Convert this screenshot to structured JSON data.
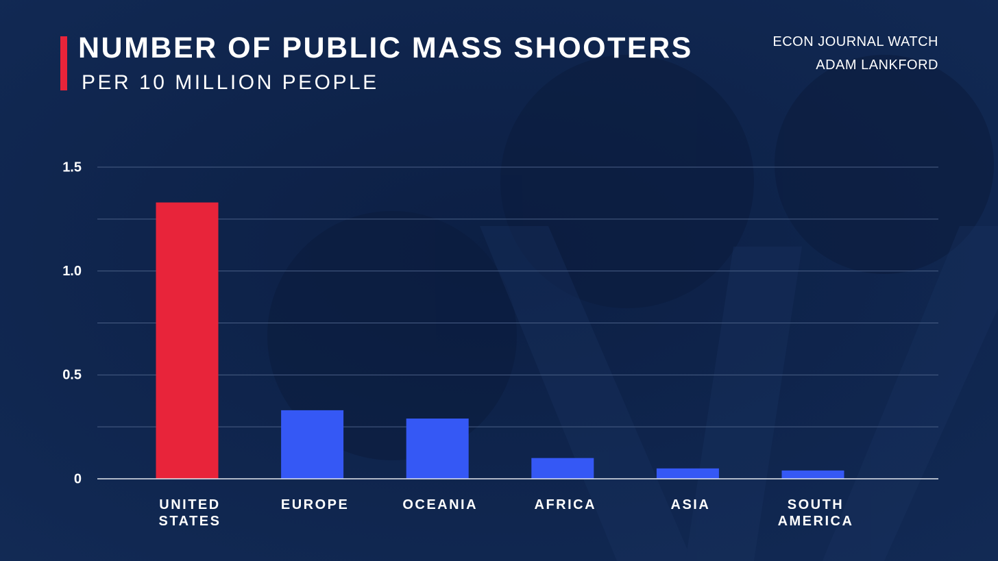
{
  "header": {
    "title": "NUMBER OF PUBLIC MASS SHOOTERS",
    "subtitle": "PER 10 MILLION PEOPLE",
    "source_line_1": "ECON JOURNAL WATCH",
    "source_line_2": "ADAM LANKFORD"
  },
  "colors": {
    "background": "#0f2348",
    "accent": "#e8243a",
    "highlight_bar": "#e8243a",
    "bar": "#3558f5",
    "gridline": "#4a5f86",
    "baseline": "#e6e9f0",
    "text": "#ffffff"
  },
  "chart_data": {
    "type": "bar",
    "title": "NUMBER OF PUBLIC MASS SHOOTERS",
    "subtitle": "PER 10 MILLION PEOPLE",
    "xlabel": "",
    "ylabel": "",
    "ylim": [
      0,
      1.5
    ],
    "grid": true,
    "gridline_step": 0.25,
    "yticks": [
      {
        "value": 0,
        "label": "0"
      },
      {
        "value": 0.5,
        "label": "0.5"
      },
      {
        "value": 1.0,
        "label": "1.0"
      },
      {
        "value": 1.5,
        "label": "1.5"
      }
    ],
    "categories": [
      [
        "UNITED",
        "STATES"
      ],
      [
        "EUROPE"
      ],
      [
        "OCEANIA"
      ],
      [
        "AFRICA"
      ],
      [
        "ASIA"
      ],
      [
        "SOUTH",
        "AMERICA"
      ]
    ],
    "values": [
      1.33,
      0.33,
      0.29,
      0.1,
      0.05,
      0.04
    ],
    "highlight_index": 0
  }
}
